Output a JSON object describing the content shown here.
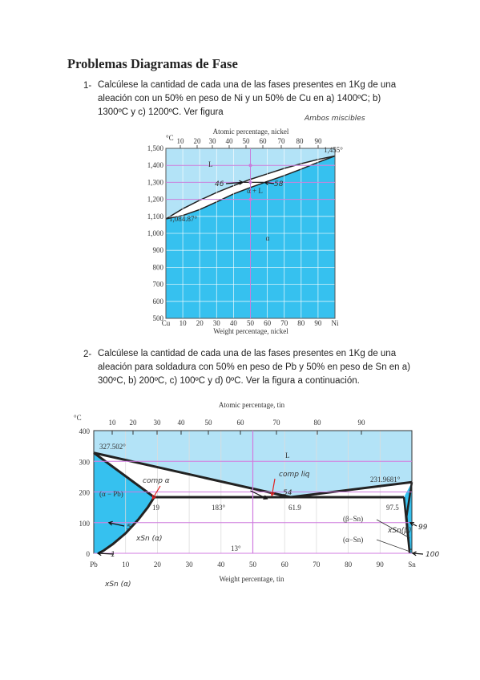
{
  "title": "Problemas Diagramas de Fase",
  "problems": [
    {
      "number": "1-",
      "text": "Calcúlese la cantidad de cada una de las fases presentes en 1Kg de una aleación con un 50% en peso de Ni y un 50% de Cu en a) 1400ºC; b) 1300ºC y c) 1200ºC. Ver figura",
      "note": "Ambos miscibles",
      "figure": {
        "top_axis_title": "Atomic percentage, nickel",
        "top_ticks": [
          "10",
          "20",
          "30",
          "40",
          "50",
          "60",
          "70",
          "80",
          "90"
        ],
        "unit": "°C",
        "y_ticks": [
          "500",
          "600",
          "700",
          "800",
          "900",
          "1,000",
          "1,100",
          "1,200",
          "1,300",
          "1,400",
          "1,500"
        ],
        "x_ticks": [
          "Cu",
          "10",
          "20",
          "30",
          "40",
          "50",
          "60",
          "70",
          "80",
          "90",
          "Ni"
        ],
        "x_axis_title": "Weight percentage, nickel",
        "labels": [
          "L",
          "α + L",
          "α",
          "1,455°",
          "1,084.87°",
          "46",
          "58"
        ]
      }
    },
    {
      "number": "2-",
      "text": "Calcúlese la cantidad de cada una de las fases presentes en 1Kg de una aleación para soldadura con 50% en peso de Pb y 50% en peso de Sn en a) 300ºC, b) 200ºC, c) 100ºC y d) 0ºC. Ver la figura a continuación.",
      "figure": {
        "top_axis_title": "Atomic percentage, tin",
        "top_ticks": [
          "10",
          "20",
          "30",
          "40",
          "50",
          "60",
          "70",
          "80",
          "90"
        ],
        "unit": "°C",
        "y_ticks": [
          "400",
          "300",
          "200",
          "100",
          "0"
        ],
        "x_ticks": [
          "Pb",
          "10",
          "20",
          "30",
          "40",
          "50",
          "60",
          "70",
          "80",
          "90",
          "Sn"
        ],
        "x_axis_title": "Weight percentage, tin",
        "labels": [
          "327.502°",
          "L",
          "231.9681°",
          "(α − Pb)",
          "19",
          "183°",
          "61.9",
          "97.5",
          "(β−Sn)",
          "(α−Sn)",
          "13°"
        ],
        "handwritten": [
          "comp α",
          "comp liq",
          "54",
          "5",
          "1",
          "99",
          "100",
          "xSn (α)",
          "xSn(β)",
          "xSn (α)"
        ]
      }
    }
  ]
}
